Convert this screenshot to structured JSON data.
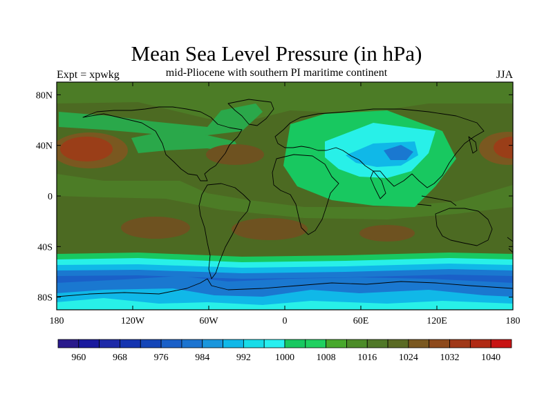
{
  "title": "Mean Sea Level Pressure (in hPa)",
  "subtitle": "mid-Pliocene with southern PI maritime continent",
  "left_string": "Expt = xpwkg",
  "right_string": "JJA",
  "axes": {
    "lat_ticks": [
      "80N",
      "40N",
      "0",
      "40S",
      "80S"
    ],
    "lon_ticks": [
      "180",
      "120W",
      "60W",
      "0",
      "60E",
      "120E",
      "180"
    ]
  },
  "colorbar": {
    "labels": [
      "960",
      "968",
      "976",
      "984",
      "992",
      "1000",
      "1008",
      "1016",
      "1024",
      "1032",
      "1040"
    ],
    "levels": [
      956,
      960,
      964,
      968,
      972,
      976,
      980,
      984,
      988,
      992,
      996,
      1000,
      1004,
      1008,
      1012,
      1016,
      1020,
      1024,
      1028,
      1032,
      1036,
      1040
    ],
    "colors": [
      "#2a1a8c",
      "#1a1a9e",
      "#1e2aa8",
      "#1434b0",
      "#1446b8",
      "#1a60c8",
      "#1c74d0",
      "#1a96dc",
      "#10b8e8",
      "#18dce8",
      "#28f0f0",
      "#18c860",
      "#20d060",
      "#48a82c",
      "#4c8c28",
      "#507828",
      "#5a6a24",
      "#7a5820",
      "#8e4a1c",
      "#a03818",
      "#b02a14",
      "#c81414"
    ]
  }
}
